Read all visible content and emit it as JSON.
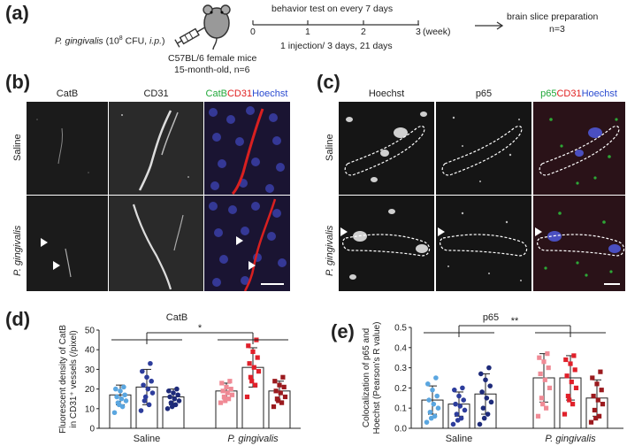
{
  "panel_a": {
    "label": "(a)",
    "injection_text_main": "P. gingivalis",
    "injection_text_dose": " (10",
    "injection_text_sup": "8",
    "injection_text_tail": " CFU, ",
    "injection_text_route": "i.p.",
    "injection_text_close": ")",
    "mouse_line1": "C57BL/6 female mice",
    "mouse_line2": "15-month-old, n=6",
    "timeline_title": "behavior test on every 7 days",
    "ticks": [
      "0",
      "1",
      "2",
      "3"
    ],
    "unit": "(week)",
    "schedule": "1 injection/ 3 days, 21 days",
    "endpoint_title": "brain slice preparation",
    "endpoint_n": "n=3"
  },
  "panel_b": {
    "label": "(b)",
    "col_headers": [
      "CatB",
      "CD31"
    ],
    "merge_parts": [
      {
        "text": "CatB",
        "color": "#22a83a"
      },
      {
        "text": "CD31",
        "color": "#e02020"
      },
      {
        "text": "Hoechst",
        "color": "#2a4bd0"
      }
    ],
    "rows": [
      "Saline",
      "P. gingivalis"
    ]
  },
  "panel_c": {
    "label": "(c)",
    "col_headers": [
      "Hoechst",
      "p65"
    ],
    "merge_parts": [
      {
        "text": "p65",
        "color": "#22a83a"
      },
      {
        "text": "CD31",
        "color": "#e02020"
      },
      {
        "text": "Hoechst",
        "color": "#2a4bd0"
      }
    ],
    "rows": [
      "Saline",
      "P. gingivalis"
    ]
  },
  "colors": {
    "saline_light": "#5aa6e0",
    "saline_mid": "#2d3d9c",
    "saline_dark": "#1e2b7a",
    "pg_light": "#f08a95",
    "pg_mid": "#e0202a",
    "pg_dark": "#9b1a1e"
  },
  "chart_data": [
    {
      "panel": "(d)",
      "type": "bar",
      "title": "CatB",
      "ylabel_line1": "Fluorescent density of CatB",
      "ylabel_line2": "in CD31⁺ vessels (/pixel)",
      "ylim": [
        0,
        50
      ],
      "yticks": [
        "0",
        "10",
        "20",
        "30",
        "40",
        "50"
      ],
      "groups": [
        "Saline",
        "P. gingivalis"
      ],
      "significance": "*",
      "bars": [
        {
          "group": "Saline",
          "mean": 17,
          "sd": 5,
          "color": "#5aa6e0",
          "points": [
            8,
            11,
            13,
            14,
            15,
            16,
            17,
            19,
            20,
            21,
            12
          ]
        },
        {
          "group": "Saline",
          "mean": 21,
          "sd": 9,
          "color": "#2d3d9c",
          "points": [
            9,
            12,
            14,
            18,
            20,
            22,
            24,
            26,
            29,
            33,
            16
          ]
        },
        {
          "group": "Saline",
          "mean": 16,
          "sd": 4,
          "color": "#1e2b7a",
          "points": [
            10,
            12,
            13,
            14,
            15,
            16,
            17,
            18,
            19,
            20,
            11
          ]
        },
        {
          "group": "P. gingivalis",
          "mean": 19,
          "sd": 4,
          "color": "#f08a95",
          "points": [
            13,
            15,
            16,
            17,
            18,
            19,
            20,
            21,
            23,
            24,
            14
          ]
        },
        {
          "group": "P. gingivalis",
          "mean": 31,
          "sd": 10,
          "color": "#e0202a",
          "points": [
            16,
            22,
            26,
            29,
            31,
            33,
            36,
            39,
            42,
            45,
            24
          ]
        },
        {
          "group": "P. gingivalis",
          "mean": 19,
          "sd": 5,
          "color": "#9b1a1e",
          "points": [
            11,
            13,
            15,
            16,
            18,
            19,
            21,
            22,
            24,
            26,
            14
          ]
        }
      ]
    },
    {
      "panel": "(e)",
      "type": "bar",
      "title": "p65",
      "ylabel_line1": "Colocalization of p65 and",
      "ylabel_line2": "Hoechst (Pearson's R value)",
      "ylim": [
        0,
        0.5
      ],
      "yticks": [
        "0.0",
        "0.1",
        "0.2",
        "0.3",
        "0.4",
        "0.5"
      ],
      "groups": [
        "Saline",
        "P. gingivalis"
      ],
      "significance": "**",
      "bars": [
        {
          "group": "Saline",
          "mean": 0.14,
          "sd": 0.07,
          "color": "#5aa6e0",
          "points": [
            0.03,
            0.06,
            0.08,
            0.1,
            0.12,
            0.14,
            0.16,
            0.19,
            0.22,
            0.25,
            0.05
          ]
        },
        {
          "group": "Saline",
          "mean": 0.12,
          "sd": 0.06,
          "color": "#2d3d9c",
          "points": [
            0.02,
            0.05,
            0.07,
            0.09,
            0.11,
            0.12,
            0.14,
            0.16,
            0.19,
            0.2,
            0.04
          ]
        },
        {
          "group": "Saline",
          "mean": 0.17,
          "sd": 0.1,
          "color": "#1e2b7a",
          "points": [
            0.02,
            0.07,
            0.1,
            0.13,
            0.15,
            0.18,
            0.21,
            0.24,
            0.27,
            0.3,
            0.05
          ]
        },
        {
          "group": "P. gingivalis",
          "mean": 0.25,
          "sd": 0.12,
          "color": "#f08a95",
          "points": [
            0.06,
            0.1,
            0.15,
            0.2,
            0.24,
            0.27,
            0.3,
            0.33,
            0.35,
            0.37,
            0.12
          ]
        },
        {
          "group": "P. gingivalis",
          "mean": 0.25,
          "sd": 0.11,
          "color": "#e0202a",
          "points": [
            0.07,
            0.12,
            0.16,
            0.2,
            0.23,
            0.26,
            0.29,
            0.32,
            0.34,
            0.36,
            0.14
          ]
        },
        {
          "group": "P. gingivalis",
          "mean": 0.15,
          "sd": 0.09,
          "color": "#9b1a1e",
          "points": [
            0.03,
            0.06,
            0.09,
            0.12,
            0.14,
            0.16,
            0.19,
            0.22,
            0.25,
            0.28,
            0.05
          ]
        }
      ]
    }
  ]
}
